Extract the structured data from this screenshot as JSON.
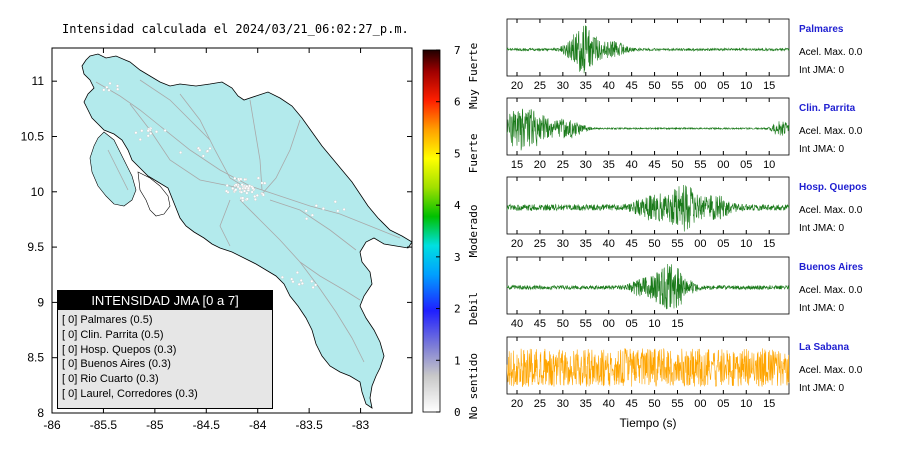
{
  "map_title": "Intensidad calculada el 2024/03/21_06:02:27_p.m.",
  "legend": {
    "title": "INTENSIDAD JMA [0 a 7]",
    "items": [
      {
        "intensity": "[ 0]",
        "label": "Palmares (0.5)"
      },
      {
        "intensity": "[ 0]",
        "label": "Clin. Parrita (0.5)"
      },
      {
        "intensity": "[ 0]",
        "label": "Hosp. Quepos (0.3)"
      },
      {
        "intensity": "[ 0]",
        "label": "Buenos Aires (0.3)"
      },
      {
        "intensity": "[ 0]",
        "label": "Rio Cuarto (0.3)"
      },
      {
        "intensity": "[ 0]",
        "label": "Laurel, Corredores (0.3)"
      }
    ]
  },
  "colorbar": {
    "ticks": [
      "0",
      "1",
      "2",
      "3",
      "4",
      "5",
      "6",
      "7"
    ],
    "categories": [
      "No sentido",
      "Debil",
      "Moderado",
      "Fuerte",
      "Muy Fuerte"
    ]
  },
  "colors": {
    "land": "#b3eaec",
    "waveform": "#1a7a1a",
    "waveform_highlight": "#ffa500",
    "station_name": "#1f1fd1"
  },
  "chart_data": [
    {
      "type": "map",
      "xlim": [
        -86,
        -82.5
      ],
      "ylim": [
        8,
        11.3
      ],
      "x_ticks": [
        -86,
        -85.5,
        -85,
        -84.5,
        -84,
        -83.5,
        -83
      ],
      "x_tick_labels": [
        "-86",
        "-85.5",
        "-85",
        "-84.5",
        "-84",
        "-83.5",
        "-83"
      ],
      "y_ticks": [
        8,
        8.5,
        9,
        9.5,
        10,
        10.5,
        11
      ],
      "y_tick_labels": [
        "8",
        "8.5",
        "9",
        "9.5",
        "10",
        "10.5",
        "11"
      ]
    },
    {
      "type": "line",
      "xlabel": "Tiempo (s)",
      "stations": [
        {
          "name": "Palmares",
          "acel": "Acel. Max. 0.0",
          "int": "Int JMA: 0",
          "color": "#1a7a1a",
          "tick_labels": [
            "20",
            "25",
            "30",
            "35",
            "40",
            "45",
            "50",
            "55",
            "00",
            "05",
            "10",
            "15"
          ],
          "tick_start": 20,
          "bursts": [
            {
              "c": 0.27,
              "w": 0.05,
              "a": 0.9
            },
            {
              "c": 0.37,
              "w": 0.05,
              "a": 0.3
            }
          ],
          "base": 0.05
        },
        {
          "name": "Clin. Parrita",
          "acel": "Acel. Max. 0.0",
          "int": "Int JMA: 0",
          "color": "#1a7a1a",
          "tick_labels": [
            "15",
            "20",
            "25",
            "30",
            "35",
            "40",
            "45",
            "50",
            "55",
            "00",
            "05",
            "10"
          ],
          "tick_start": 15,
          "bursts": [
            {
              "c": 0.06,
              "w": 0.09,
              "a": 0.85
            },
            {
              "c": 0.22,
              "w": 0.05,
              "a": 0.35
            },
            {
              "c": 0.97,
              "w": 0.03,
              "a": 0.3
            }
          ],
          "base": 0.03
        },
        {
          "name": "Hosp. Quepos",
          "acel": "Acel. Max. 0.0",
          "int": "Int JMA: 0",
          "color": "#1a7a1a",
          "tick_labels": [
            "20",
            "25",
            "30",
            "35",
            "40",
            "45",
            "50",
            "55",
            "00",
            "05",
            "10",
            "15"
          ],
          "tick_start": 20,
          "bursts": [
            {
              "c": 0.52,
              "w": 0.06,
              "a": 0.45
            },
            {
              "c": 0.63,
              "w": 0.05,
              "a": 0.9
            },
            {
              "c": 0.74,
              "w": 0.05,
              "a": 0.4
            }
          ],
          "base": 0.12
        },
        {
          "name": "Buenos Aires",
          "acel": "Acel. Max. 0.0",
          "int": "Int JMA: 0",
          "color": "#1a7a1a",
          "tick_labels": [
            "40",
            "45",
            "50",
            "55",
            "00",
            "05",
            "10",
            "15"
          ],
          "tick_start": 40,
          "bursts": [
            {
              "c": 0.58,
              "w": 0.06,
              "a": 0.9
            },
            {
              "c": 0.48,
              "w": 0.04,
              "a": 0.3
            }
          ],
          "base": 0.08
        },
        {
          "name": "La Sabana",
          "acel": "Acel. Max. 0.0",
          "int": "Int JMA: 0",
          "color": "#ffa500",
          "tick_labels": [
            "20",
            "25",
            "30",
            "35",
            "40",
            "45",
            "50",
            "55",
            "00",
            "05",
            "10",
            "15"
          ],
          "tick_start": 20,
          "bursts": [],
          "base": 0.75
        }
      ]
    }
  ]
}
